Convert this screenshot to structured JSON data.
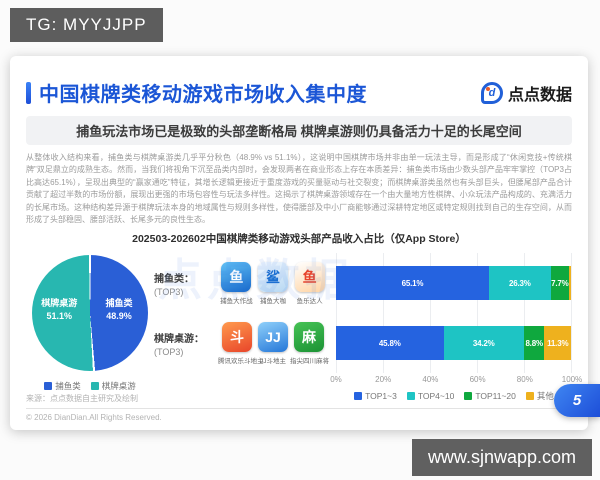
{
  "overlay": {
    "tg_badge": "TG: MYYJJPP",
    "site_badge": "www.sjnwapp.com"
  },
  "slide": {
    "header": {
      "title": "中国棋牌类移动游戏市场收入集中度",
      "logo_mark": "d",
      "logo_text": "点点数据",
      "subtitle": "捕鱼玩法市场已是极致的头部垄断格局 棋牌桌游则仍具备活力十足的长尾空间"
    },
    "paragraph": "从整体收入结构来看，捕鱼类与棋牌桌游类几乎平分秋色（48.9% vs 51.1%），这说明中国棋牌市场并非由单一玩法主导，而是形成了“休闲竞技+传统棋牌”双足鼎立的成熟生态。然而，当我们将视角下沉至品类内部时，会发现两者在商业形态上存在本质差异：捕鱼类市场由少数头部产品牢牢掌控（TOP3占比高达65.1%），呈现出典型的“赢家通吃”特征，其增长逻辑更接近于重度游戏的买量驱动与社交裂变；而棋牌桌游类虽然也有头部巨头，但腰尾部产品合计贡献了超过半数的市场份额，展现出更强的市场包容性与玩法多样性。这揭示了棋牌桌游领域存在一个由大量地方性棋牌、小众玩法产品构成的、充满活力的长尾市场。这种结构差异源于棋牌玩法本身的地域属性与规则多样性，使得腰部及中小厂商能够通过深耕特定地区或特定规则找到自己的生存空间，从而形成了头部稳固、腰部活跃、长尾多元的良性生态。",
    "chart_title": "202503-202602中国棋牌类移动游戏头部产品收入占比（仅App Store）",
    "watermark": "点点数据",
    "footer": {
      "source": "来源：点点数据自主研究及绘制",
      "copyright": "© 2026 DianDian.All Rights Reserved."
    },
    "page_number": "5"
  },
  "rows": [
    {
      "label": "捕鱼类：",
      "sublabel": "(TOP3)",
      "apps": [
        {
          "name": "捕鱼大作战",
          "glyph": "鱼",
          "glyph_color": "#ffffff",
          "icon_colors": [
            "#62c1f5",
            "#1768cb"
          ]
        },
        {
          "name": "捕鱼大咖",
          "glyph": "鲨",
          "glyph_color": "#1a6fd0",
          "icon_colors": [
            "#f2f8ff",
            "#b6d7f2"
          ]
        },
        {
          "name": "鱼乐达人",
          "glyph": "鱼",
          "glyph_color": "#e8442c",
          "icon_colors": [
            "#ffffff",
            "#ffd4a3"
          ]
        }
      ]
    },
    {
      "label": "棋牌桌游：",
      "sublabel": "(TOP3)",
      "apps": [
        {
          "name": "腾讯欢乐斗地主",
          "glyph": "斗",
          "glyph_color": "#ffffff",
          "icon_colors": [
            "#ff9a4d",
            "#e8452a"
          ]
        },
        {
          "name": "JJ斗地主",
          "glyph": "JJ",
          "glyph_color": "#ffffff",
          "icon_colors": [
            "#8fd0fa",
            "#2577d8"
          ]
        },
        {
          "name": "指尖四川麻将",
          "glyph": "麻",
          "glyph_color": "#ffffff",
          "icon_colors": [
            "#46c255",
            "#1b9234"
          ]
        }
      ]
    }
  ],
  "chart_data": [
    {
      "type": "pie",
      "slices": [
        {
          "label": "捕鱼类",
          "value": 48.9,
          "display": "48.9%",
          "color": "#2a5fd6"
        },
        {
          "label": "棋牌桌游",
          "value": 51.1,
          "display": "51.1%",
          "color": "#28b7b0"
        }
      ],
      "legend_position": "bottom"
    },
    {
      "type": "bar",
      "variant": "horizontal-stacked",
      "categories": [
        "捕鱼类(TOP3)",
        "棋牌桌游(TOP3)"
      ],
      "series": [
        {
          "name": "TOP1~3",
          "color": "#2563e0",
          "values": [
            65.1,
            45.8
          ]
        },
        {
          "name": "TOP4~10",
          "color": "#1ec4c4",
          "values": [
            26.3,
            34.2
          ]
        },
        {
          "name": "TOP11~20",
          "color": "#0fa83e",
          "values": [
            7.7,
            8.8
          ]
        },
        {
          "name": "其他",
          "color": "#eeb11e",
          "values": [
            0.9,
            11.3
          ]
        }
      ],
      "x_ticks": [
        "0%",
        "20%",
        "40%",
        "60%",
        "80%",
        "100%"
      ],
      "xlim": [
        0,
        100
      ],
      "grid": true,
      "legend_position": "bottom"
    }
  ]
}
